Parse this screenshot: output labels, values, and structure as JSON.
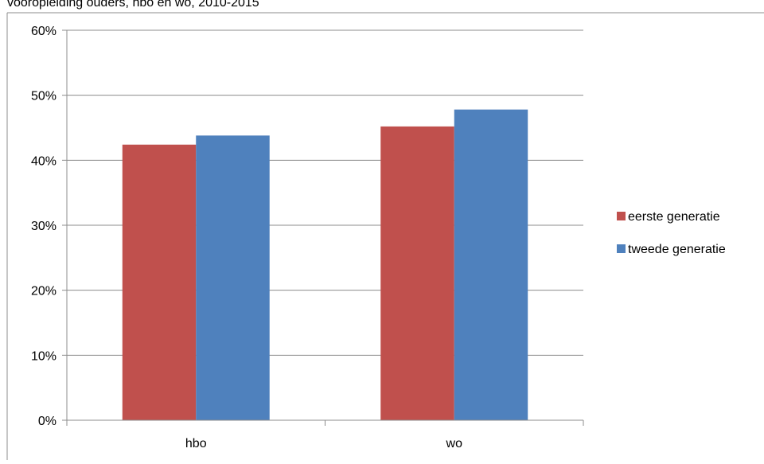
{
  "chart_data": {
    "type": "bar",
    "title": "vooropleiding ouders, hbo en wo, 2010-2015",
    "categories": [
      "hbo",
      "wo"
    ],
    "series": [
      {
        "name": "eerste generatie",
        "color": "#c0504d",
        "values": [
          42.4,
          45.2
        ]
      },
      {
        "name": "tweede generatie",
        "color": "#4f81bd",
        "values": [
          43.8,
          47.8
        ]
      }
    ],
    "y_ticks": [
      "0%",
      "10%",
      "20%",
      "30%",
      "40%",
      "50%",
      "60%"
    ],
    "ylim": [
      0,
      60
    ],
    "unit": "%",
    "grid": true,
    "legend_position": "right"
  }
}
